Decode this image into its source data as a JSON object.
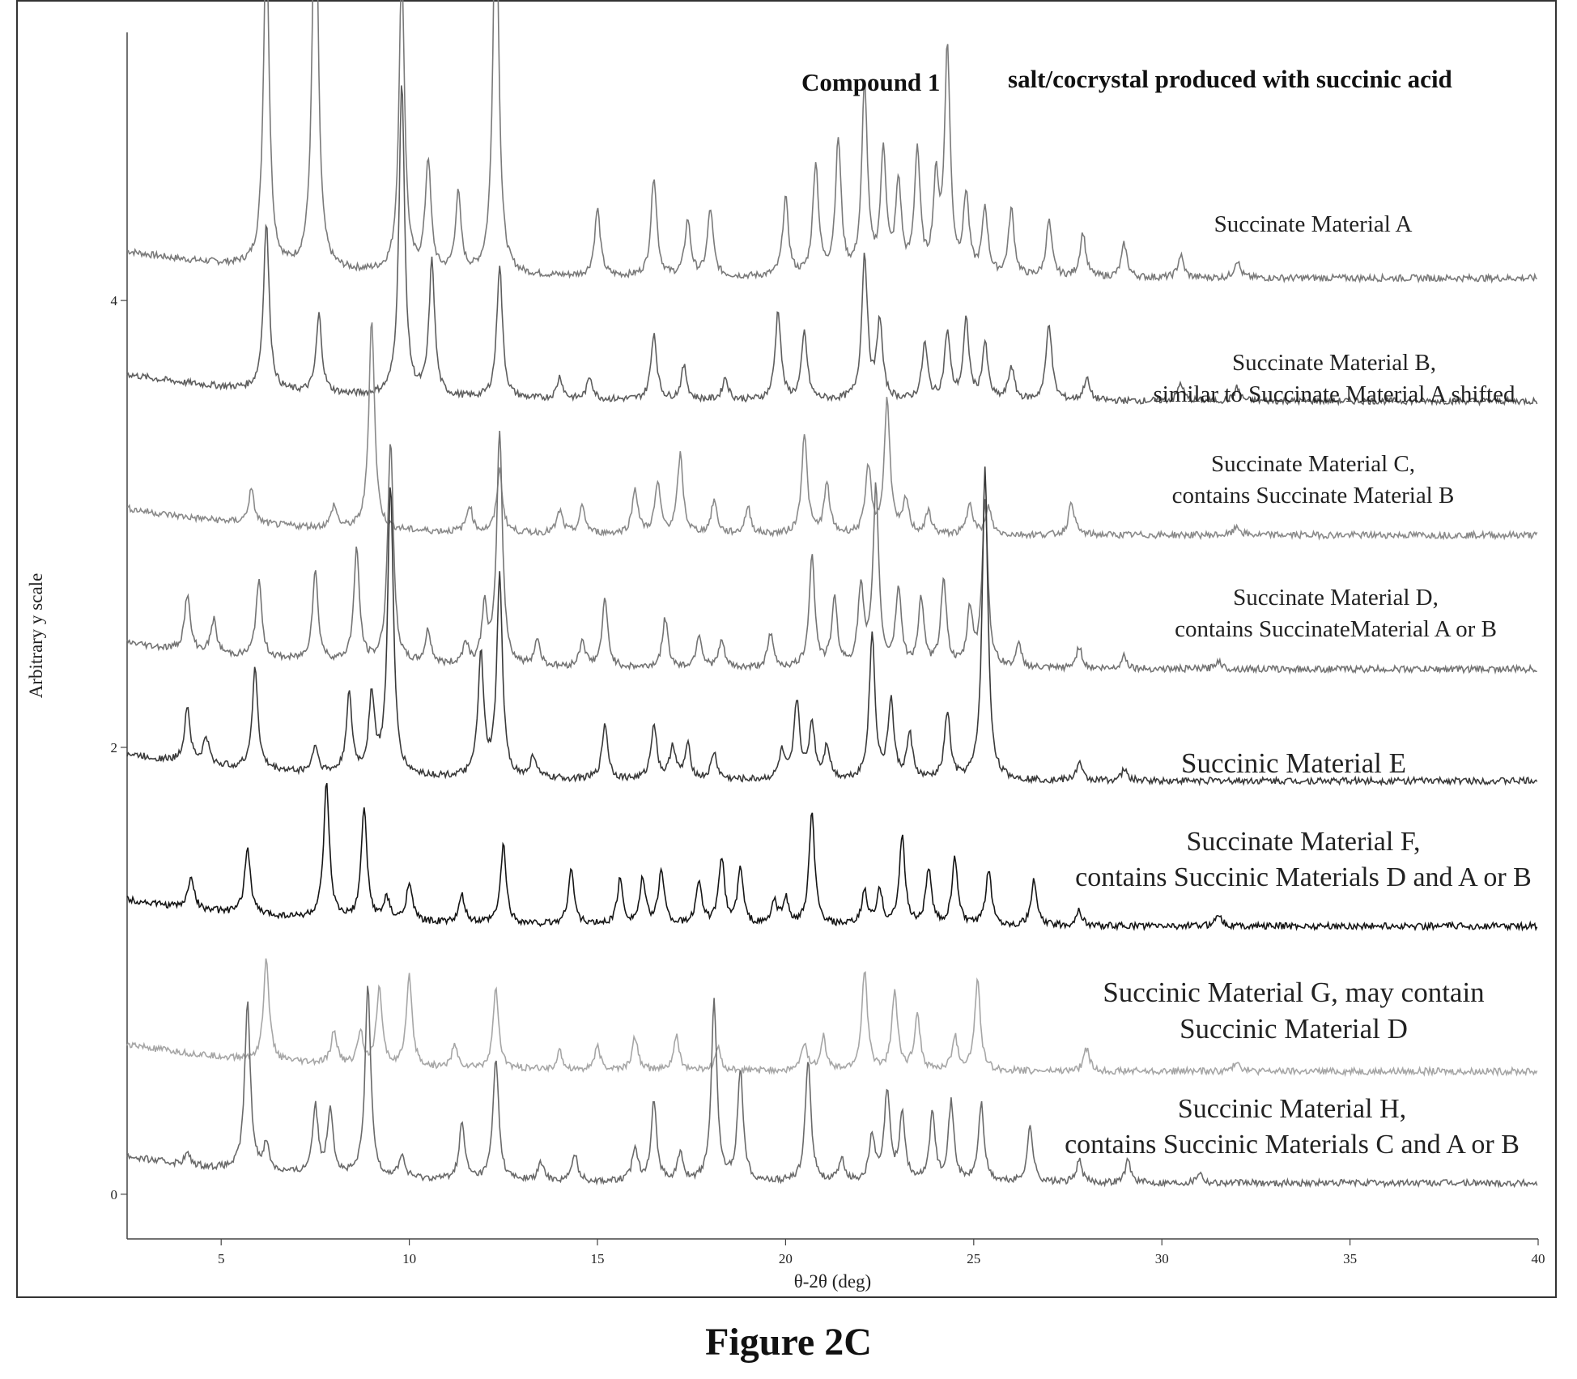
{
  "caption": "Figure 2C",
  "chart_data": {
    "type": "line",
    "title_parts": [
      "Compound 1",
      "salt/cocrystal produced with succinic acid"
    ],
    "xlabel": "θ-2θ (deg)",
    "ylabel": "Arbitrary y scale",
    "xlim": [
      2.5,
      40
    ],
    "ylim": [
      -0.2,
      5.2
    ],
    "x_ticks": [
      5,
      10,
      15,
      20,
      25,
      30,
      35,
      40
    ],
    "y_ticks": [
      0,
      2,
      4
    ],
    "grid": false,
    "series": [
      {
        "name": "Succinate Material A",
        "label_lines": [
          "Succinate Material A"
        ],
        "color": "#7a7a7a",
        "baseline": 4.1,
        "peaks": [
          [
            6.2,
            1.5
          ],
          [
            7.5,
            1.9
          ],
          [
            9.8,
            1.35
          ],
          [
            10.5,
            0.5
          ],
          [
            11.3,
            0.35
          ],
          [
            12.3,
            1.8
          ],
          [
            15.0,
            0.3
          ],
          [
            16.5,
            0.45
          ],
          [
            17.4,
            0.25
          ],
          [
            18.0,
            0.3
          ],
          [
            20.0,
            0.35
          ],
          [
            20.8,
            0.5
          ],
          [
            21.4,
            0.6
          ],
          [
            22.1,
            0.85
          ],
          [
            22.6,
            0.55
          ],
          [
            23.0,
            0.4
          ],
          [
            23.5,
            0.55
          ],
          [
            24.0,
            0.4
          ],
          [
            24.3,
            1.0
          ],
          [
            24.8,
            0.35
          ],
          [
            25.3,
            0.3
          ],
          [
            26.0,
            0.3
          ],
          [
            27.0,
            0.25
          ],
          [
            27.9,
            0.2
          ],
          [
            29.0,
            0.15
          ],
          [
            30.5,
            0.1
          ],
          [
            32.0,
            0.08
          ]
        ]
      },
      {
        "name": "Succinate Material B",
        "label_lines": [
          "Succinate Material B,",
          "similar to Succinate Material A shifted"
        ],
        "color": "#5e5e5e",
        "baseline": 3.55,
        "peaks": [
          [
            6.2,
            0.75
          ],
          [
            7.6,
            0.35
          ],
          [
            9.8,
            1.4
          ],
          [
            10.6,
            0.6
          ],
          [
            12.4,
            0.6
          ],
          [
            14.0,
            0.1
          ],
          [
            14.8,
            0.1
          ],
          [
            16.5,
            0.3
          ],
          [
            17.3,
            0.15
          ],
          [
            18.4,
            0.1
          ],
          [
            19.8,
            0.4
          ],
          [
            20.5,
            0.3
          ],
          [
            22.1,
            0.65
          ],
          [
            22.5,
            0.35
          ],
          [
            23.7,
            0.25
          ],
          [
            24.3,
            0.3
          ],
          [
            24.8,
            0.35
          ],
          [
            25.3,
            0.25
          ],
          [
            26.0,
            0.15
          ],
          [
            27.0,
            0.35
          ],
          [
            28.0,
            0.1
          ],
          [
            30.5,
            0.08
          ],
          [
            32.0,
            0.06
          ]
        ]
      },
      {
        "name": "Succinate Material C",
        "label_lines": [
          "Succinate Material C,",
          "contains Succinate Material B"
        ],
        "color": "#8a8a8a",
        "baseline": 2.95,
        "peaks": [
          [
            5.8,
            0.15
          ],
          [
            8.0,
            0.1
          ],
          [
            9.0,
            0.95
          ],
          [
            11.6,
            0.12
          ],
          [
            12.4,
            0.28
          ],
          [
            14.0,
            0.1
          ],
          [
            14.6,
            0.12
          ],
          [
            16.0,
            0.2
          ],
          [
            16.6,
            0.22
          ],
          [
            17.2,
            0.35
          ],
          [
            18.1,
            0.15
          ],
          [
            19.0,
            0.12
          ],
          [
            20.5,
            0.45
          ],
          [
            21.1,
            0.22
          ],
          [
            22.2,
            0.3
          ],
          [
            22.7,
            0.6
          ],
          [
            23.2,
            0.15
          ],
          [
            23.8,
            0.1
          ],
          [
            24.9,
            0.15
          ],
          [
            25.4,
            0.12
          ],
          [
            27.6,
            0.15
          ],
          [
            32.0,
            0.04
          ]
        ]
      },
      {
        "name": "Succinate Material D",
        "label_lines": [
          "Succinate Material D,",
          "contains SuccinateMaterial A or B"
        ],
        "color": "#747474",
        "baseline": 2.35,
        "peaks": [
          [
            4.1,
            0.25
          ],
          [
            4.8,
            0.15
          ],
          [
            6.0,
            0.35
          ],
          [
            7.5,
            0.4
          ],
          [
            8.6,
            0.5
          ],
          [
            9.5,
            1.0
          ],
          [
            10.5,
            0.15
          ],
          [
            11.5,
            0.1
          ],
          [
            12.0,
            0.25
          ],
          [
            12.4,
            1.05
          ],
          [
            13.4,
            0.12
          ],
          [
            14.6,
            0.12
          ],
          [
            15.2,
            0.3
          ],
          [
            16.8,
            0.22
          ],
          [
            17.7,
            0.15
          ],
          [
            18.3,
            0.12
          ],
          [
            19.6,
            0.15
          ],
          [
            20.7,
            0.5
          ],
          [
            21.3,
            0.3
          ],
          [
            22.0,
            0.35
          ],
          [
            22.4,
            0.8
          ],
          [
            23.0,
            0.35
          ],
          [
            23.6,
            0.3
          ],
          [
            24.2,
            0.4
          ],
          [
            24.9,
            0.25
          ],
          [
            25.3,
            0.75
          ],
          [
            26.2,
            0.1
          ],
          [
            27.8,
            0.1
          ],
          [
            29.0,
            0.06
          ],
          [
            31.5,
            0.04
          ]
        ]
      },
      {
        "name": "Succinic Material E",
        "label_lines": [
          "Succinic Material E"
        ],
        "color": "#3a3a3a",
        "baseline": 1.85,
        "peaks": [
          [
            4.1,
            0.25
          ],
          [
            4.6,
            0.12
          ],
          [
            5.9,
            0.45
          ],
          [
            7.5,
            0.12
          ],
          [
            8.4,
            0.35
          ],
          [
            9.0,
            0.35
          ],
          [
            9.5,
            1.3
          ],
          [
            11.9,
            0.55
          ],
          [
            12.4,
            0.9
          ],
          [
            13.3,
            0.1
          ],
          [
            15.2,
            0.25
          ],
          [
            16.5,
            0.25
          ],
          [
            17.0,
            0.15
          ],
          [
            17.4,
            0.15
          ],
          [
            18.1,
            0.12
          ],
          [
            19.9,
            0.12
          ],
          [
            20.3,
            0.35
          ],
          [
            20.7,
            0.25
          ],
          [
            21.1,
            0.15
          ],
          [
            22.3,
            0.65
          ],
          [
            22.8,
            0.35
          ],
          [
            23.3,
            0.2
          ],
          [
            24.3,
            0.3
          ],
          [
            25.3,
            1.4
          ],
          [
            27.8,
            0.08
          ],
          [
            29.0,
            0.05
          ]
        ]
      },
      {
        "name": "Succinate Material F",
        "label_lines": [
          "Succinate Material F,",
          "contains Succinic Materials D and A or B"
        ],
        "color": "#161616",
        "baseline": 1.2,
        "peaks": [
          [
            4.2,
            0.15
          ],
          [
            5.7,
            0.3
          ],
          [
            7.8,
            0.6
          ],
          [
            8.8,
            0.5
          ],
          [
            9.4,
            0.1
          ],
          [
            10.0,
            0.18
          ],
          [
            11.4,
            0.12
          ],
          [
            12.5,
            0.35
          ],
          [
            14.3,
            0.25
          ],
          [
            15.6,
            0.2
          ],
          [
            16.2,
            0.2
          ],
          [
            16.7,
            0.25
          ],
          [
            17.7,
            0.2
          ],
          [
            18.3,
            0.3
          ],
          [
            18.8,
            0.25
          ],
          [
            19.7,
            0.1
          ],
          [
            20.0,
            0.12
          ],
          [
            20.7,
            0.5
          ],
          [
            22.1,
            0.15
          ],
          [
            22.5,
            0.15
          ],
          [
            23.1,
            0.4
          ],
          [
            23.8,
            0.25
          ],
          [
            24.5,
            0.3
          ],
          [
            25.4,
            0.25
          ],
          [
            26.6,
            0.2
          ],
          [
            27.8,
            0.07
          ],
          [
            31.5,
            0.06
          ]
        ]
      },
      {
        "name": "Succinic Material G",
        "label_lines": [
          "Succinic Material G, may contain",
          "Succinic Material D"
        ],
        "color": "#a6a6a6",
        "baseline": 0.55,
        "peaks": [
          [
            6.2,
            0.45
          ],
          [
            8.0,
            0.15
          ],
          [
            8.7,
            0.15
          ],
          [
            9.2,
            0.35
          ],
          [
            10.0,
            0.4
          ],
          [
            11.2,
            0.1
          ],
          [
            12.3,
            0.35
          ],
          [
            14.0,
            0.08
          ],
          [
            15.0,
            0.1
          ],
          [
            16.0,
            0.15
          ],
          [
            17.1,
            0.15
          ],
          [
            18.2,
            0.1
          ],
          [
            20.5,
            0.12
          ],
          [
            21.0,
            0.15
          ],
          [
            22.1,
            0.45
          ],
          [
            22.9,
            0.35
          ],
          [
            23.5,
            0.25
          ],
          [
            24.5,
            0.15
          ],
          [
            25.1,
            0.4
          ],
          [
            28.0,
            0.1
          ],
          [
            32.0,
            0.05
          ]
        ]
      },
      {
        "name": "Succinic Material H",
        "label_lines": [
          "Succinic Material H,",
          "contains Succinic Materials C and A or B"
        ],
        "color": "#6a6a6a",
        "baseline": 0.05,
        "peaks": [
          [
            4.1,
            0.05
          ],
          [
            5.7,
            0.75
          ],
          [
            6.2,
            0.12
          ],
          [
            7.5,
            0.3
          ],
          [
            7.9,
            0.3
          ],
          [
            8.9,
            0.85
          ],
          [
            9.8,
            0.1
          ],
          [
            11.4,
            0.25
          ],
          [
            12.3,
            0.55
          ],
          [
            13.5,
            0.08
          ],
          [
            14.4,
            0.12
          ],
          [
            16.0,
            0.15
          ],
          [
            16.5,
            0.35
          ],
          [
            17.2,
            0.12
          ],
          [
            18.1,
            0.8
          ],
          [
            18.8,
            0.5
          ],
          [
            20.6,
            0.55
          ],
          [
            21.5,
            0.1
          ],
          [
            22.3,
            0.2
          ],
          [
            22.7,
            0.4
          ],
          [
            23.1,
            0.3
          ],
          [
            23.9,
            0.3
          ],
          [
            24.4,
            0.35
          ],
          [
            25.2,
            0.35
          ],
          [
            26.5,
            0.25
          ],
          [
            27.8,
            0.1
          ],
          [
            29.1,
            0.1
          ],
          [
            31.0,
            0.05
          ]
        ]
      }
    ]
  }
}
